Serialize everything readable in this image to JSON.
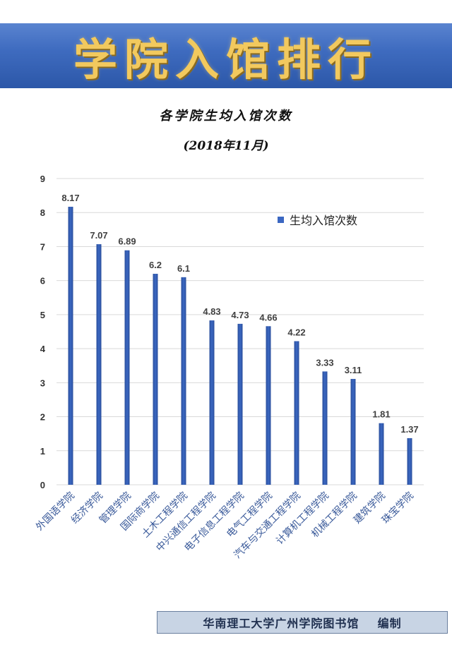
{
  "banner": {
    "title": "学院入馆排行"
  },
  "footer": {
    "text": "华南理工大学广州学院图书馆    编制"
  },
  "colors": {
    "bar": "#3b67c2",
    "bar_dark": "#2a4f9c",
    "banner": "#3f6cc0",
    "banner_text": "#f2c95e",
    "axis_label": "#3a5a9a"
  },
  "chart_data": {
    "type": "bar",
    "title": "各学院生均入馆次数",
    "subtitle": "(2018年11月)",
    "categories": [
      "外国语学院",
      "经济学院",
      "管理学院",
      "国际商学院",
      "土木工程学院",
      "中兴通信工程学院",
      "电子信息工程学院",
      "电气工程学院",
      "汽车与交通工程学院",
      "计算机工程学院",
      "机械工程学院",
      "建筑学院",
      "珠宝学院"
    ],
    "series": [
      {
        "name": "生均入馆次数",
        "values": [
          8.17,
          7.07,
          6.89,
          6.2,
          6.1,
          4.83,
          4.73,
          4.66,
          4.22,
          3.33,
          3.11,
          1.81,
          1.37
        ]
      }
    ],
    "data_labels": [
      "8.17",
      "7.07",
      "6.89",
      "6.2",
      "6.1",
      "4.83",
      "4.73",
      "4.66",
      "4.22",
      "3.33",
      "3.11",
      "1.81",
      "1.37"
    ],
    "ylim": [
      0,
      9
    ],
    "yticks": [
      0,
      1,
      2,
      3,
      4,
      5,
      6,
      7,
      8,
      9
    ],
    "grid": true,
    "legend": "top-right"
  }
}
